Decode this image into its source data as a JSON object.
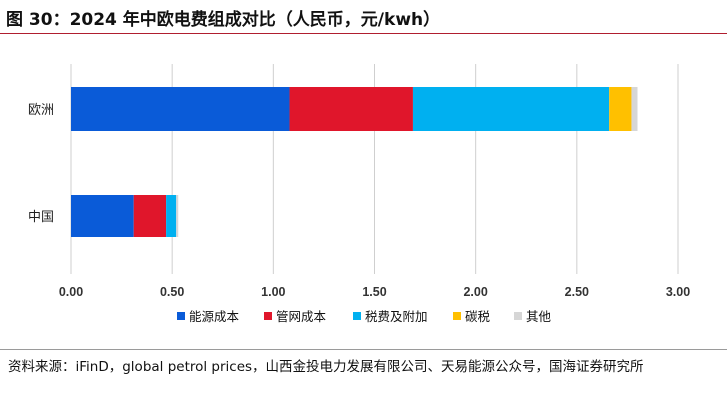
{
  "figure": {
    "title": "图 30：2024 年中欧电费组成对比（人民币，元/kwh）",
    "source": "资料来源：iFinD，global petrol prices，山西金投电力发展有限公司、天易能源公众号，国海证券研究所"
  },
  "colors": {
    "title_rule": "#b01e2f",
    "grid": "#cfcfcf"
  },
  "chart_data": {
    "type": "bar",
    "orientation": "horizontal",
    "stacked": true,
    "categories": [
      "欧洲",
      "中国"
    ],
    "series": [
      {
        "name": "能源成本",
        "color": "#0a5bd8",
        "values": [
          1.08,
          0.31
        ]
      },
      {
        "name": "管网成本",
        "color": "#e0162b",
        "values": [
          0.61,
          0.16
        ]
      },
      {
        "name": "税费及附加",
        "color": "#00b0f0",
        "values": [
          0.97,
          0.05
        ]
      },
      {
        "name": "碳税",
        "color": "#ffc000",
        "values": [
          0.11,
          0.0
        ]
      },
      {
        "name": "其他",
        "color": "#d6d6d6",
        "values": [
          0.03,
          0.01
        ]
      }
    ],
    "xlim": [
      0,
      3.0
    ],
    "xticks": [
      "0.00",
      "0.50",
      "1.00",
      "1.50",
      "2.00",
      "2.50",
      "3.00"
    ],
    "xtick_values": [
      0,
      0.5,
      1.0,
      1.5,
      2.0,
      2.5,
      3.0
    ],
    "grid": "vertical",
    "legend": "bottom"
  }
}
